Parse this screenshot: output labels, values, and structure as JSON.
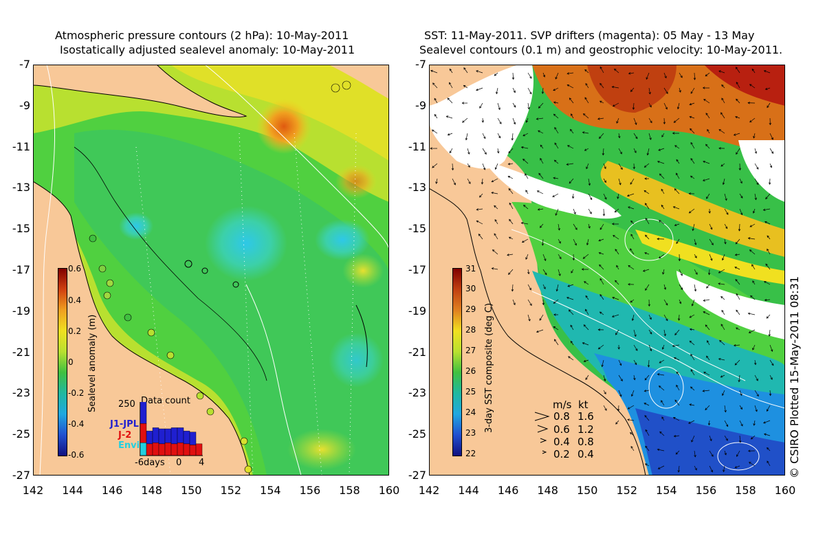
{
  "left": {
    "title_line1": "Atmospheric pressure contours (2 hPa): 10-May-2011",
    "title_line2": "Isostatically adjusted sealevel anomaly: 10-May-2011",
    "colorbar_label": "Sealevel anomaly (m)",
    "colorbar_ticks": [
      "0.6",
      "0.4",
      "0.2",
      "0",
      "-0.2",
      "-0.4",
      "-0.6"
    ],
    "inset_title": "Data count",
    "inset_ymax": "250",
    "inset_xticks": [
      "-6days",
      "0",
      "4"
    ],
    "legend": [
      {
        "label": "J1-JPL",
        "color": "#1f1fd0"
      },
      {
        "label": "J-2",
        "color": "#e01010"
      },
      {
        "label": "Envi",
        "color": "#22d0e0"
      }
    ],
    "inset_bars": [
      {
        "day": -6,
        "envi": 60,
        "j2": 90,
        "j1": 130
      },
      {
        "day": -5,
        "envi": 0,
        "j2": 55,
        "j1": 60
      },
      {
        "day": -4,
        "envi": 0,
        "j2": 60,
        "j1": 70
      },
      {
        "day": -3,
        "envi": 0,
        "j2": 55,
        "j1": 70
      },
      {
        "day": -2,
        "envi": 0,
        "j2": 60,
        "j1": 65
      },
      {
        "day": -1,
        "envi": 0,
        "j2": 55,
        "j1": 75
      },
      {
        "day": 0,
        "envi": 0,
        "j2": 60,
        "j1": 70
      },
      {
        "day": 1,
        "envi": 0,
        "j2": 55,
        "j1": 60
      },
      {
        "day": 2,
        "envi": 0,
        "j2": 50,
        "j1": 60
      },
      {
        "day": 3,
        "envi": 0,
        "j2": 55,
        "j1": 0
      }
    ]
  },
  "right": {
    "title_line1": "SST: 11-May-2011. SVP drifters (magenta): 05 May - 13 May",
    "title_line2": "Sealevel contours (0.1 m) and geostrophic velocity: 10-May-2011.",
    "colorbar_label": "3-day SST composite (deg C)",
    "colorbar_ticks": [
      "31",
      "30",
      "29",
      "28",
      "27",
      "26",
      "25",
      "24",
      "23",
      "22"
    ],
    "speed_header_ms": "m/s",
    "speed_header_kt": "kt",
    "speed_scale": [
      {
        "ms": "0.8",
        "kt": "1.6"
      },
      {
        "ms": "0.6",
        "kt": "1.2"
      },
      {
        "ms": "0.4",
        "kt": "0.8"
      },
      {
        "ms": "0.2",
        "kt": "0.4"
      }
    ],
    "credit": "© CSIRO Plotted 15-May-2011 08:31"
  },
  "axes": {
    "lat_ticks": [
      "-7",
      "-9",
      "-11",
      "-13",
      "-15",
      "-17",
      "-19",
      "-21",
      "-23",
      "-25",
      "-27"
    ],
    "lon_ticks": [
      "142",
      "144",
      "146",
      "148",
      "150",
      "152",
      "154",
      "156",
      "158",
      "160"
    ],
    "lon_range": [
      142,
      160
    ],
    "lat_range": [
      -27,
      -7
    ]
  },
  "colors": {
    "land": "#f8c898",
    "cloud": "#ffffff"
  }
}
